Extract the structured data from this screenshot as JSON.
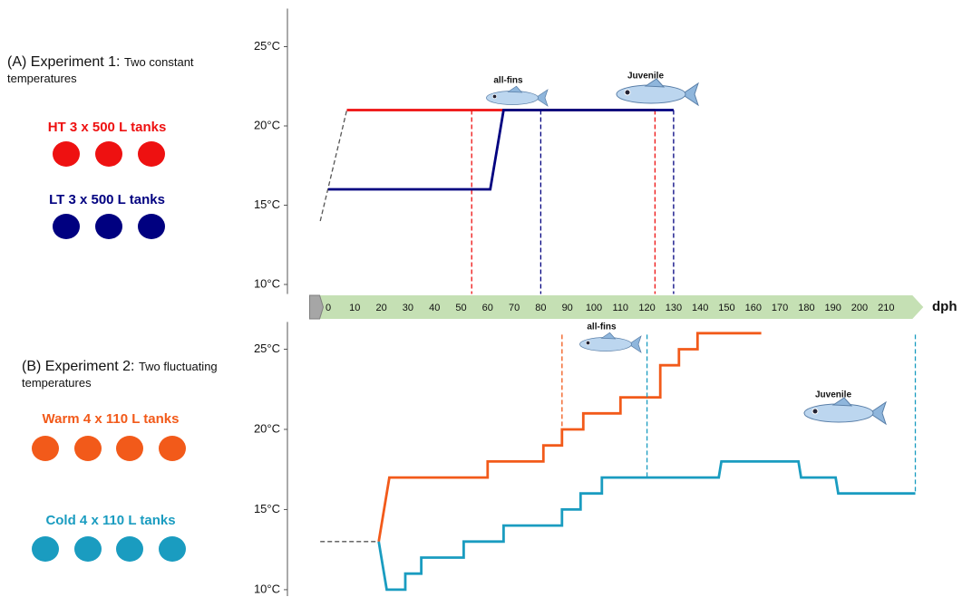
{
  "chart_data": [
    {
      "type": "line",
      "panel_title": "(A) Experiment 1:",
      "panel_subtitle": "Two constant temperatures",
      "xlim": [
        -7,
        224
      ],
      "xticks": [
        0,
        10,
        20,
        30,
        40,
        50,
        60,
        70,
        80,
        90,
        100,
        110,
        120,
        130,
        140,
        150,
        160,
        170,
        180,
        190,
        200,
        210
      ],
      "xlabel": "dph",
      "ylim": [
        9.4,
        27.4
      ],
      "yticks": [
        {
          "value": 10,
          "label": "10°C"
        },
        {
          "value": 15,
          "label": "15°C"
        },
        {
          "value": 20,
          "label": "20°C"
        },
        {
          "value": 25,
          "label": "25°C"
        }
      ],
      "annotations": [
        "all-fins",
        "Juvenile"
      ],
      "series": [
        {
          "color": "#555555",
          "dashed": true,
          "x": [
            -3,
            7
          ],
          "values": [
            14,
            21
          ]
        },
        {
          "name": "HT 3 x 500 L tanks",
          "color": "#ee1111",
          "x": [
            7,
            123
          ],
          "values": [
            21,
            21
          ],
          "stages": [
            {
              "x": 54,
              "y": 21
            },
            {
              "x": 123,
              "y": 21
            }
          ]
        },
        {
          "name": "LT 3 x 500 L tanks",
          "color": "#000080",
          "x": [
            0,
            61,
            66,
            130
          ],
          "values": [
            16,
            16,
            21,
            21
          ],
          "stages": [
            {
              "x": 80,
              "y": 21
            },
            {
              "x": 130,
              "y": 21
            }
          ]
        }
      ]
    },
    {
      "type": "line",
      "panel_title": "(B) Experiment 2:",
      "panel_subtitle": "Two fluctuating temperatures",
      "xlim": [
        -7,
        224
      ],
      "ylim": [
        9.6,
        26.7
      ],
      "yticks": [
        {
          "value": 10,
          "label": "10°C"
        },
        {
          "value": 15,
          "label": "15°C"
        },
        {
          "value": 20,
          "label": "20°C"
        },
        {
          "value": 25,
          "label": "25°C"
        }
      ],
      "annotations": [
        "all-fins",
        "Juvenile"
      ],
      "series": [
        {
          "color": "#555555",
          "dashed": true,
          "x": [
            -3,
            19
          ],
          "values": [
            13,
            13
          ]
        },
        {
          "name": "Warm 4 x 110 L tanks",
          "color": "#f25a1a",
          "x": [
            19,
            23,
            60,
            60,
            81,
            81,
            88,
            88,
            96,
            96,
            110,
            110,
            125,
            125,
            132,
            132,
            139,
            139,
            163
          ],
          "values": [
            13,
            17,
            17,
            18,
            18,
            19,
            19,
            20,
            20,
            21,
            21,
            22,
            22,
            24,
            24,
            25,
            25,
            26,
            26
          ],
          "stages": [
            {
              "x": 88,
              "y": 19
            }
          ]
        },
        {
          "name": "Cold 4 x 110 L tanks",
          "color": "#1a9cc0",
          "x": [
            19,
            22,
            29,
            29,
            35,
            35,
            51,
            51,
            66,
            66,
            88,
            88,
            95,
            95,
            103,
            103,
            147,
            148,
            177,
            178,
            191,
            192,
            221
          ],
          "values": [
            13,
            10,
            10,
            11,
            11,
            12,
            12,
            13,
            13,
            14,
            14,
            15,
            15,
            16,
            16,
            17,
            17,
            18,
            18,
            17,
            17,
            16,
            16
          ],
          "stages": [
            {
              "x": 120,
              "y": 17
            },
            {
              "x": 221,
              "y": 16
            }
          ]
        }
      ]
    }
  ]
}
